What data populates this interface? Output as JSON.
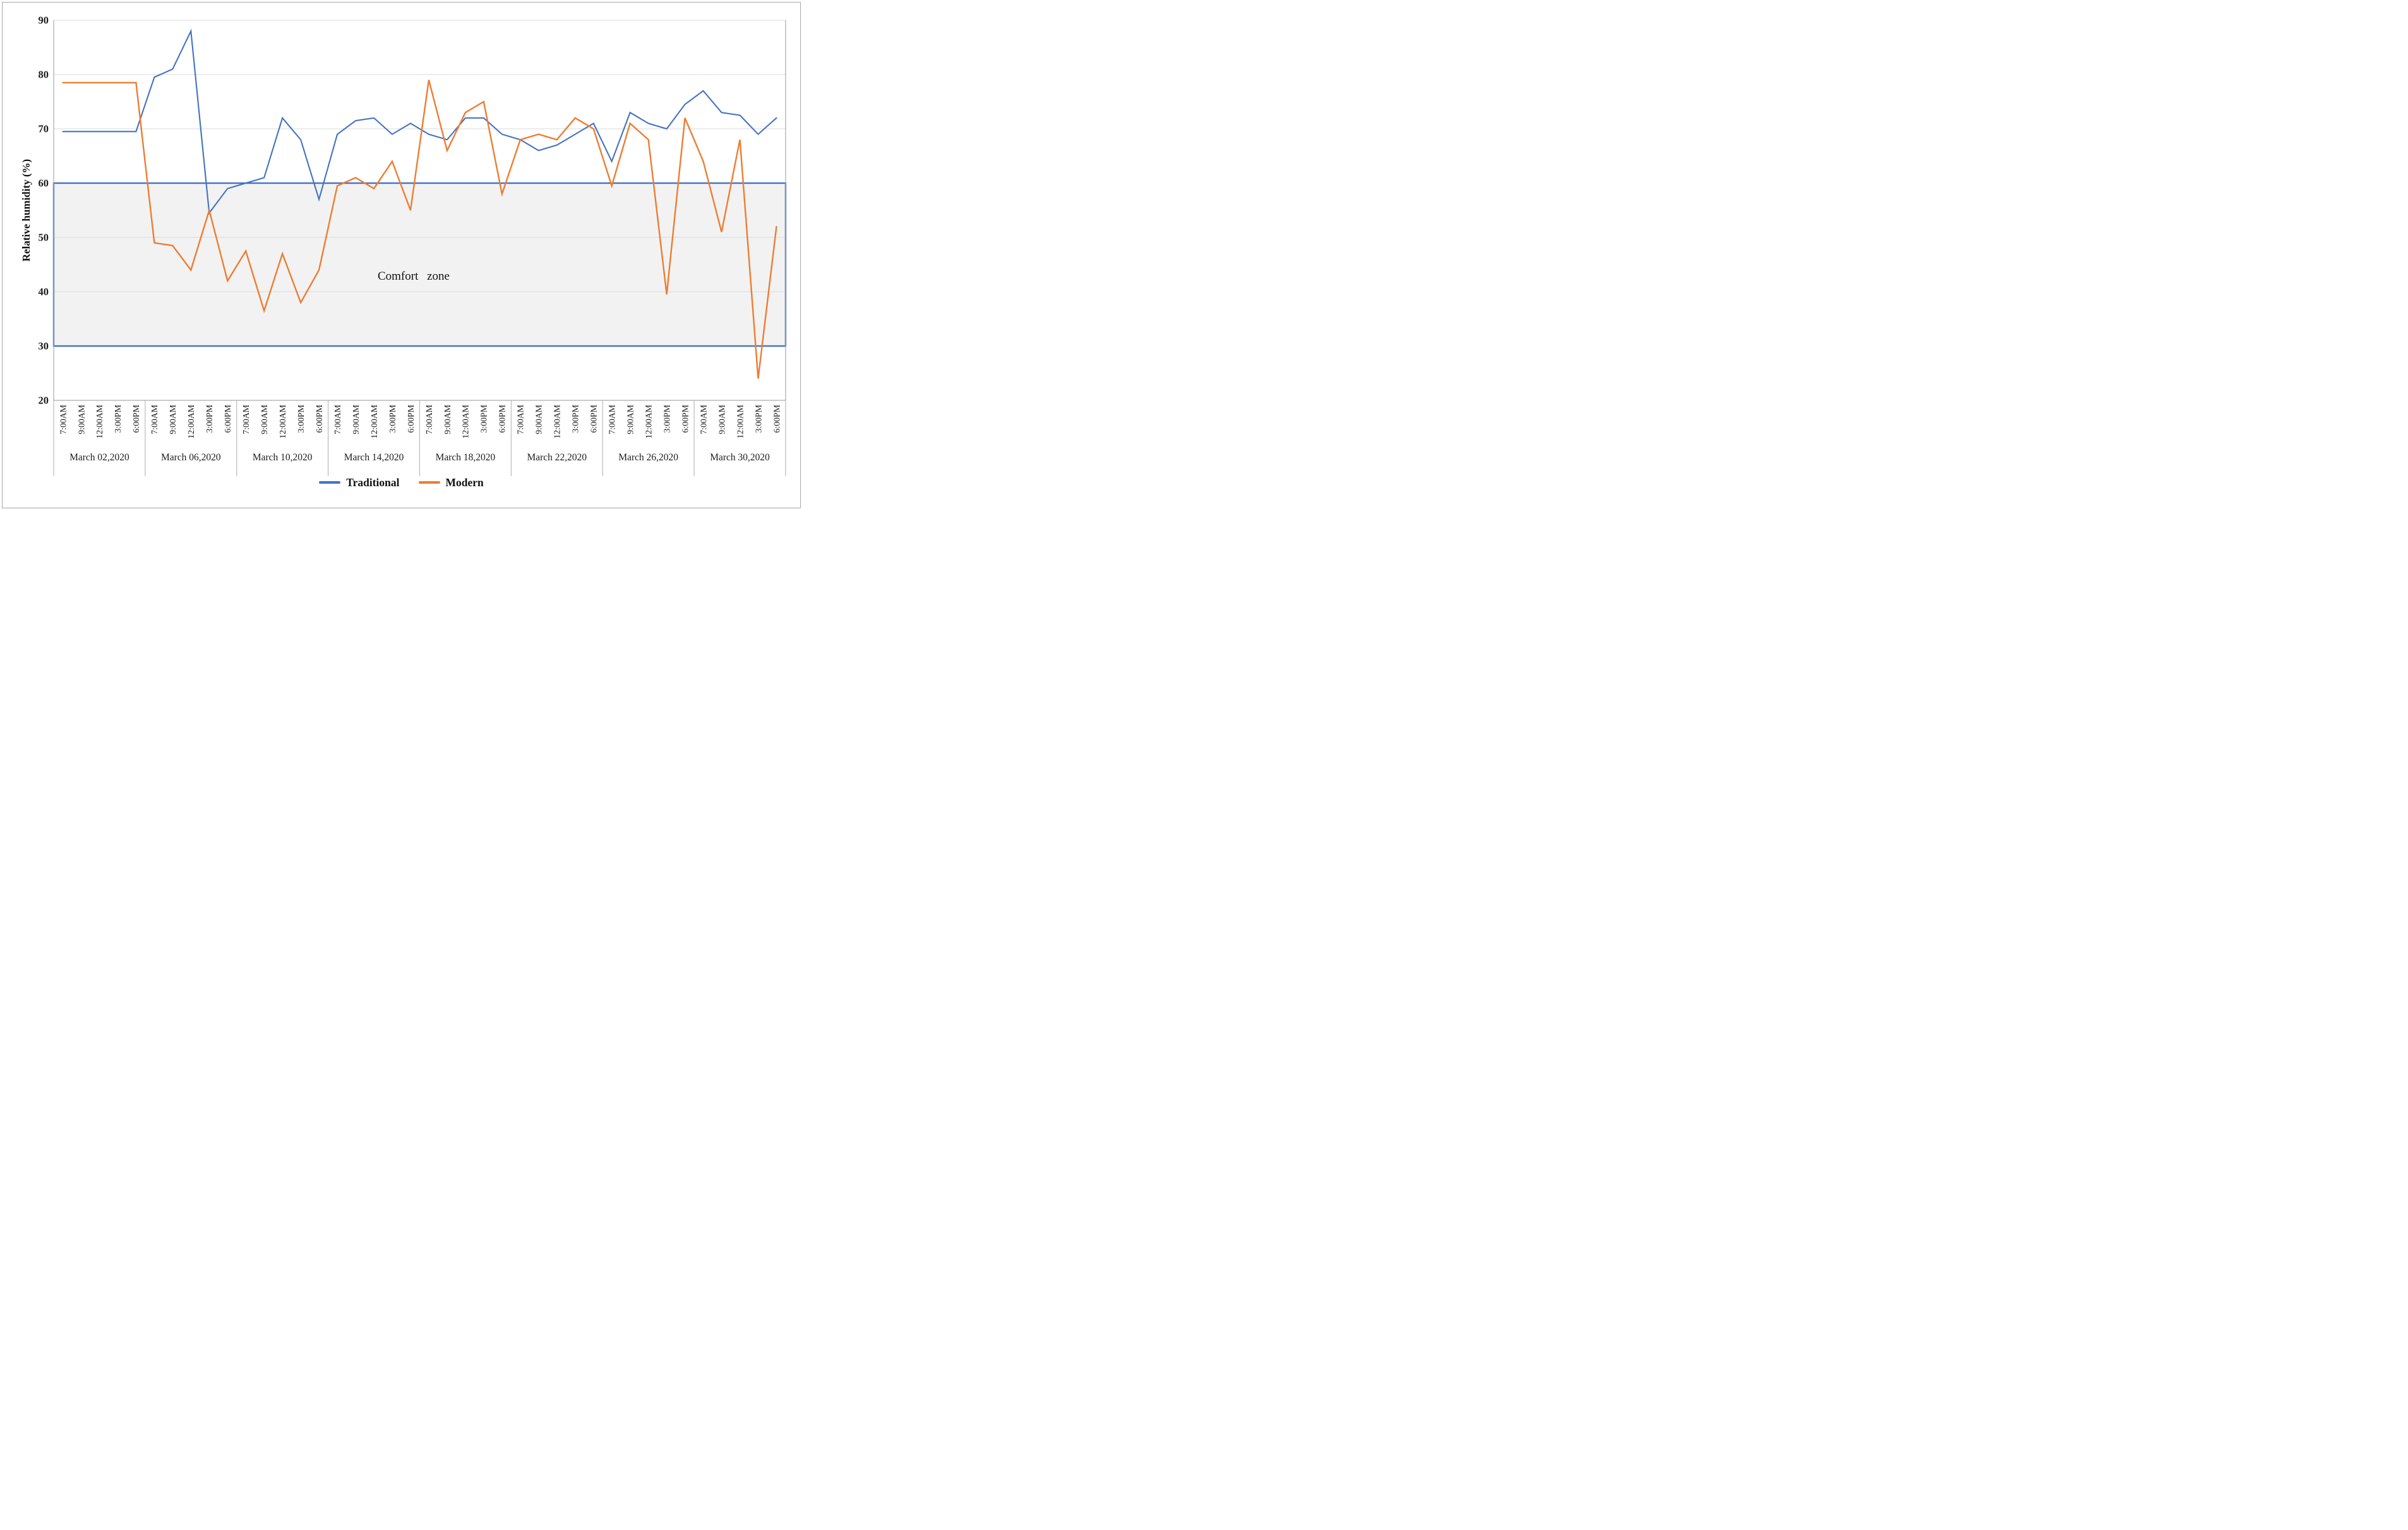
{
  "figure": {
    "comfort_label": "Comfort zone"
  },
  "chart_data": {
    "type": "line",
    "title": "",
    "xlabel": "",
    "ylabel": "Relative humidity (%)",
    "ylim": [
      20,
      90
    ],
    "yticks": [
      20,
      30,
      40,
      50,
      60,
      70,
      80,
      90
    ],
    "grid": true,
    "legend_position": "bottom",
    "times": [
      "7:00AM",
      "9:00AM",
      "12:00AM",
      "3:00PM",
      "6:00PM"
    ],
    "dates": [
      "March 02,2020",
      "March 06,2020",
      "March 10,2020",
      "March 14,2020",
      "March 18,2020",
      "March 22,2020",
      "March 26,2020",
      "March 30,2020"
    ],
    "series": [
      {
        "name": "Traditional",
        "color": "#4472C4",
        "values": [
          69.5,
          69.5,
          69.5,
          69.5,
          69.5,
          79.5,
          81,
          88,
          54.5,
          59,
          60,
          61,
          72,
          68,
          57,
          69,
          71.5,
          72,
          69,
          71,
          69,
          68,
          72,
          72,
          69,
          68,
          66,
          67,
          69,
          71,
          64,
          73,
          71,
          70,
          74.5,
          77,
          73,
          72.5,
          69,
          72
        ]
      },
      {
        "name": "Modern",
        "color": "#ED7D31",
        "values": [
          78.5,
          78.5,
          78.5,
          78.5,
          78.5,
          49,
          48.5,
          44,
          55,
          42,
          47.5,
          36.5,
          47,
          38,
          44,
          59.5,
          61,
          59,
          64,
          55,
          79,
          66,
          73,
          75,
          58,
          68,
          69,
          68,
          72,
          70,
          59.5,
          71,
          68,
          39.5,
          72,
          64,
          51,
          68,
          24,
          52
        ]
      }
    ],
    "annotation": {
      "label": "Comfort zone",
      "band_min": 30,
      "band_max": 60,
      "band_fill": "#f2f2f2",
      "band_border": "#4472C4"
    }
  }
}
